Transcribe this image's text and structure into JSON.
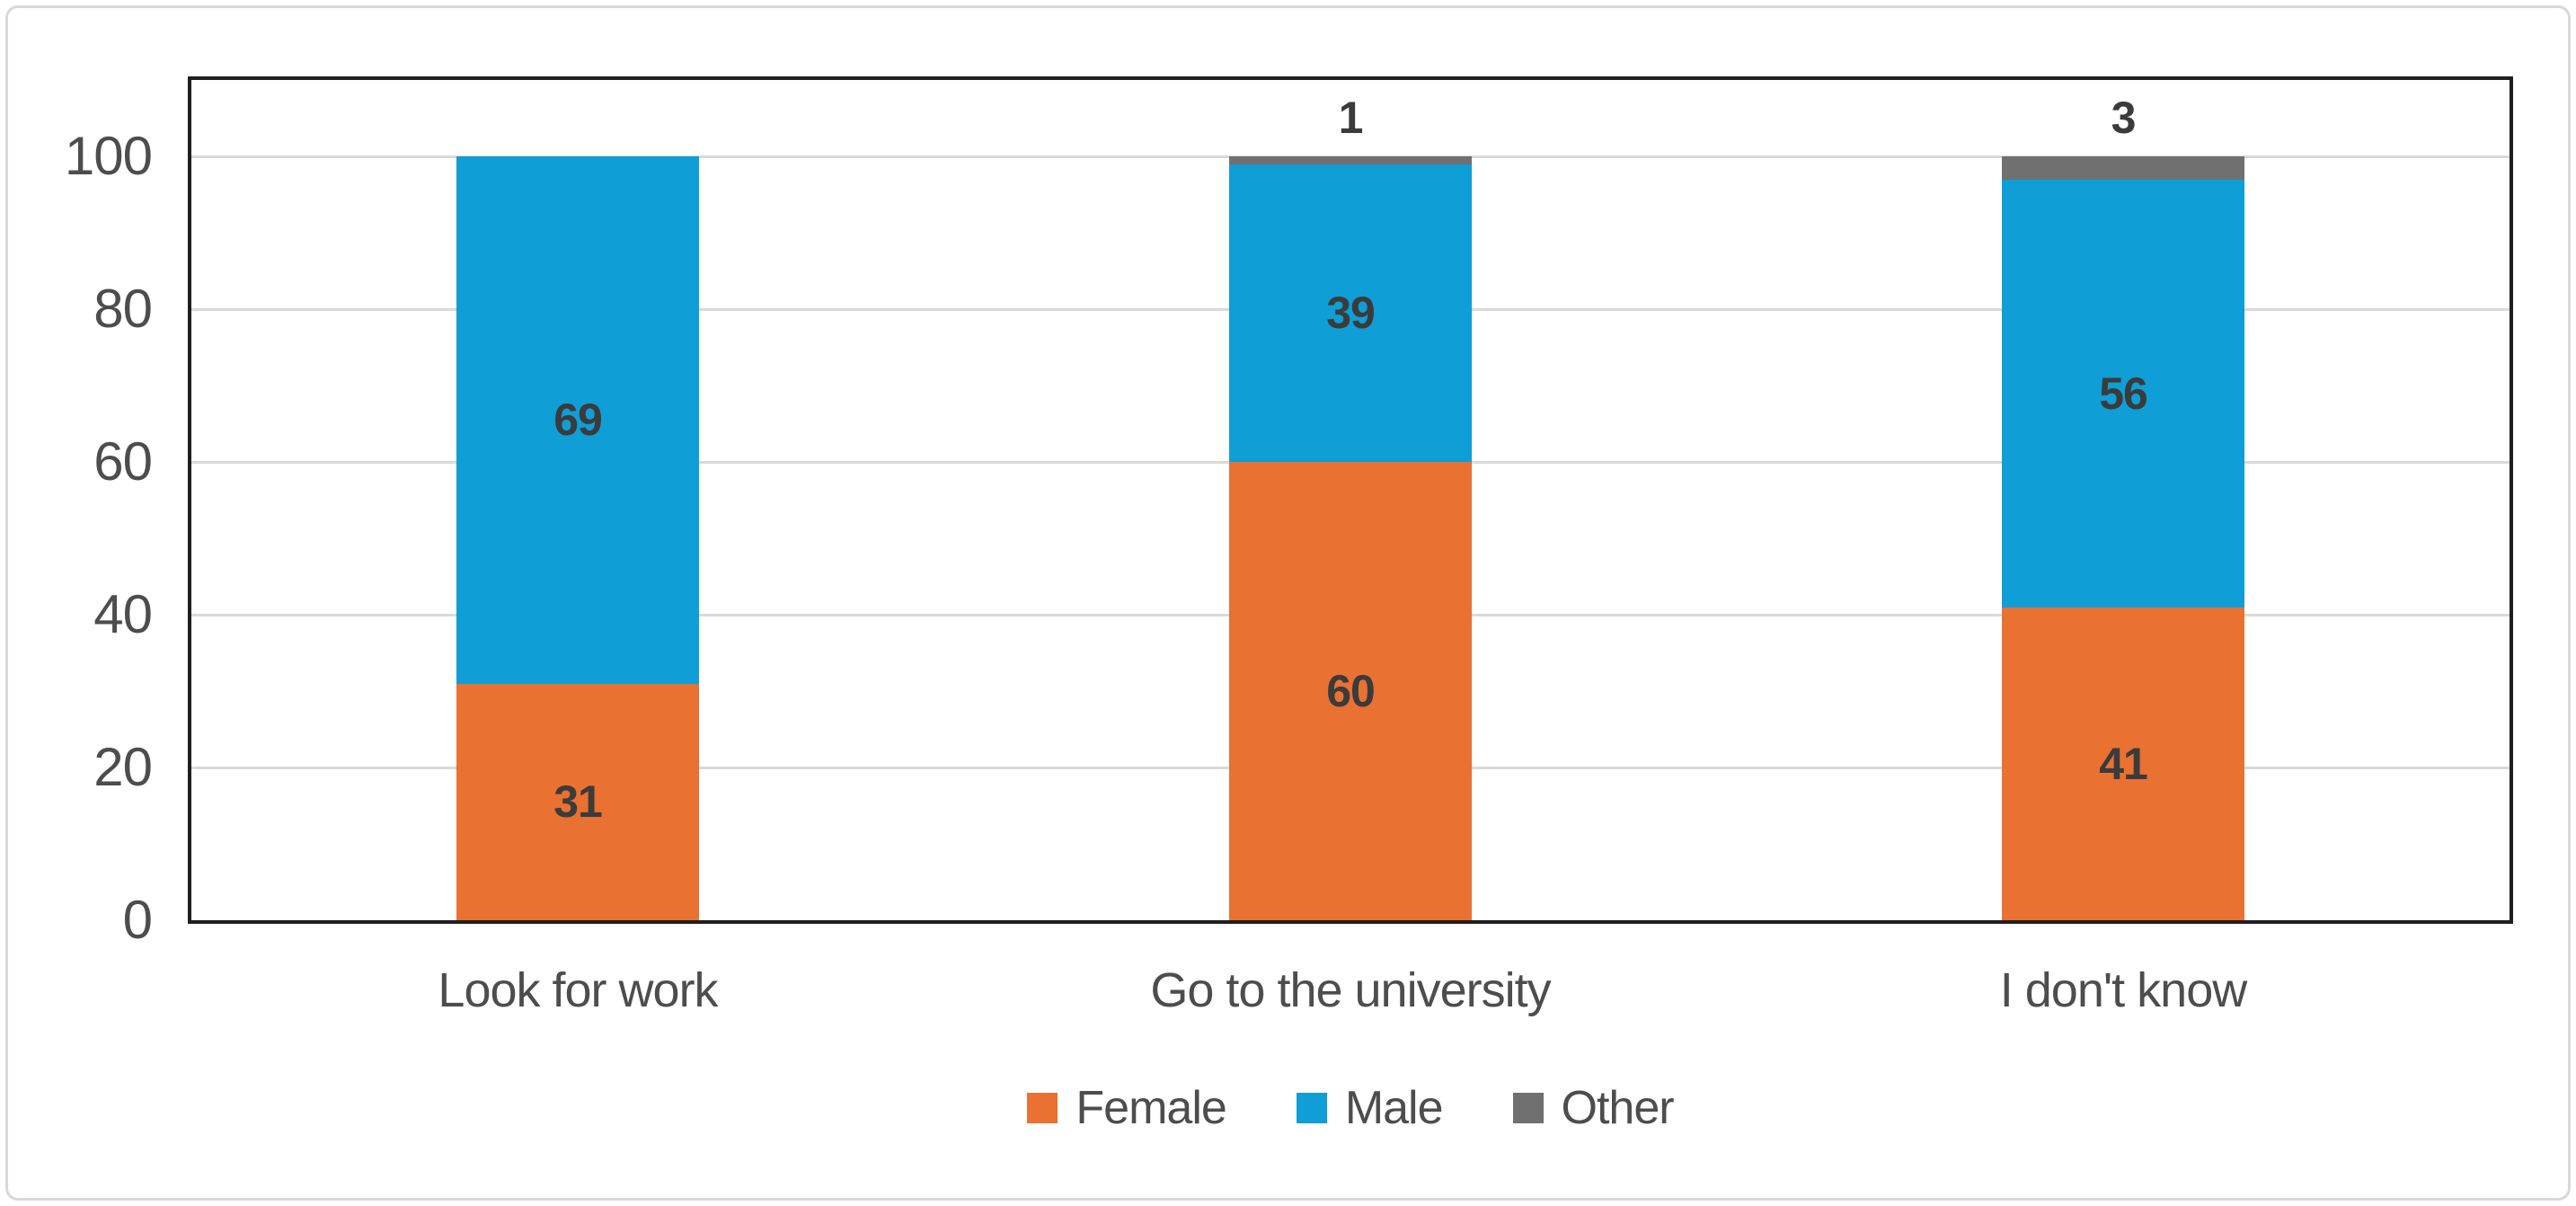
{
  "chart_data": {
    "type": "bar",
    "stacked": true,
    "title": "",
    "xlabel": "",
    "ylabel": "",
    "categories": [
      "Look for work",
      "Go to the university",
      "I don't know"
    ],
    "series": [
      {
        "name": "Female",
        "color": "#E97132",
        "values": [
          31,
          60,
          41
        ],
        "label_position": "center"
      },
      {
        "name": "Male",
        "color": "#0F9ED5",
        "values": [
          69,
          39,
          56
        ],
        "label_position": "center"
      },
      {
        "name": "Other",
        "color": "#707070",
        "values": [
          0,
          1,
          3
        ],
        "label_position": "above"
      }
    ],
    "ylim": [
      0,
      110
    ],
    "yticks": [
      0,
      20,
      40,
      60,
      80,
      100
    ],
    "grid": true,
    "legend_position": "bottom",
    "data_labels": true,
    "colors": {
      "data_label": "#3B3B3B",
      "axis_text": "#4D4D4D",
      "legend_text": "#4D4D4D",
      "gridline": "#D9D9D9",
      "plot_border": "#1F1F1F",
      "canvas_border": "#D8D8D8"
    }
  }
}
